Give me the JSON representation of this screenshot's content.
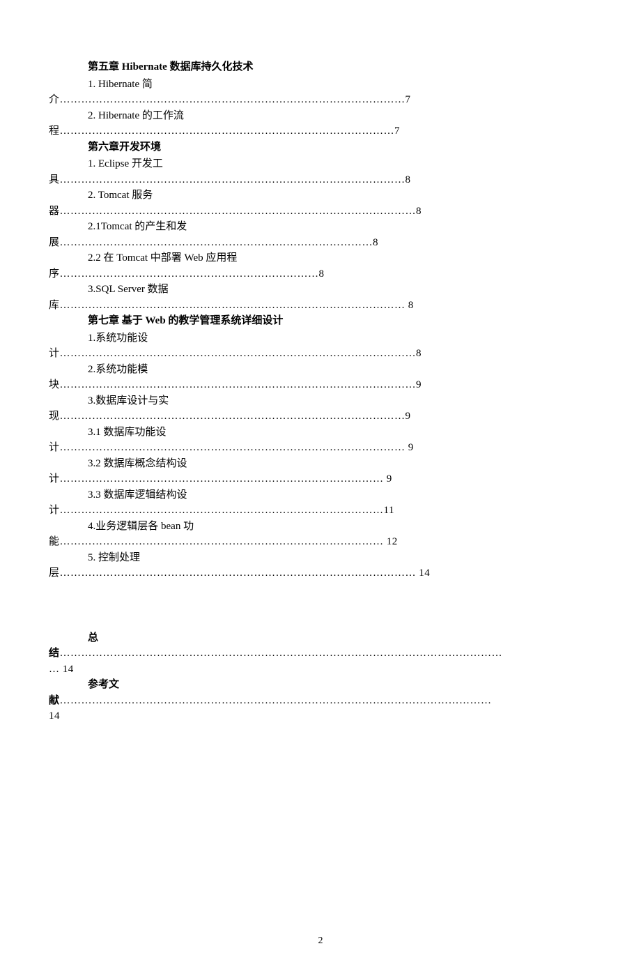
{
  "textColor": "#000000",
  "bgColor": "#ffffff",
  "fontFamily": "SimSun",
  "entries": [
    {
      "type": "heading",
      "text": "第五章 Hibernate 数据库持久化技术"
    },
    {
      "type": "toc",
      "line1": "1. Hibernate 简",
      "line2_prefix": "介",
      "dots": "……………………………………………………………………………………",
      "page": "7"
    },
    {
      "type": "toc",
      "line1": "2. Hibernate 的工作流",
      "line2_prefix": "程",
      "dots": "…………………………………………………………………………………",
      "page": "7"
    },
    {
      "type": "heading",
      "text": "第六章开发环境"
    },
    {
      "type": "toc",
      "line1": "1. Eclipse 开发工",
      "line2_prefix": "具",
      "dots": "……………………………………………………………………………………",
      "page": "8"
    },
    {
      "type": "toc",
      "line1": "2. Tomcat 服务",
      "line2_prefix": "器",
      "dots": "………………………………………………………………………………………",
      "page": "8"
    },
    {
      "type": "toc",
      "line1": "2.1Tomcat 的产生和发",
      "line2_prefix": "展",
      "dots": "……………………………………………………………………………",
      "page": "8"
    },
    {
      "type": "toc",
      "line1": "2.2  在 Tomcat 中部署 Web 应用程",
      "line2_prefix": "序",
      "dots": "………………………………………………………………",
      "page": "8"
    },
    {
      "type": "toc",
      "line1": "3.SQL Server 数据",
      "line2_prefix": "库",
      "dots": "…………………………………………………………………………………… ",
      "page": "8"
    },
    {
      "type": "heading",
      "text": "第七章 基于 Web 的教学管理系统详细设计"
    },
    {
      "type": "toc",
      "line1": "1.系统功能设",
      "line2_prefix": "计",
      "dots": "………………………………………………………………………………………",
      "page": "8"
    },
    {
      "type": "toc",
      "line1": "2.系统功能模",
      "line2_prefix": "块",
      "dots": "………………………………………………………………………………………",
      "page": "9"
    },
    {
      "type": "toc",
      "line1": "3.数据库设计与实",
      "line2_prefix": "现",
      "dots": "……………………………………………………………………………………",
      "page": "9"
    },
    {
      "type": "toc",
      "line1": "3.1 数据库功能设",
      "line2_prefix": "计",
      "dots": "…………………………………………………………………………………… ",
      "page": "9"
    },
    {
      "type": "toc",
      "line1": "3.2  数据库概念结构设",
      "line2_prefix": "计",
      "dots": "……………………………………………………………………………… ",
      "page": "9"
    },
    {
      "type": "toc",
      "line1": "3.3 数据库逻辑结构设",
      "line2_prefix": "计",
      "dots": "………………………………………………………………………………",
      "page": "11"
    },
    {
      "type": "toc",
      "line1": "4.业务逻辑层各 bean 功",
      "line2_prefix": "能",
      "dots": "……………………………………………………………………………… ",
      "page": "12"
    },
    {
      "type": "toc",
      "line1": "5. 控制处理",
      "line2_prefix": "层",
      "dots": "……………………………………………………………………………………… ",
      "page": "14"
    }
  ],
  "summary": {
    "line1_bold": "总",
    "line2_prefix_bold": "结",
    "dots": "……………………………………………………………………………………………………………",
    "line3": "… 14"
  },
  "references": {
    "line1_bold": "参考文",
    "line2_prefix_bold": "献",
    "dots": "…………………………………………………………………………………………………………",
    "line3": "14"
  },
  "pageNumber": "2"
}
